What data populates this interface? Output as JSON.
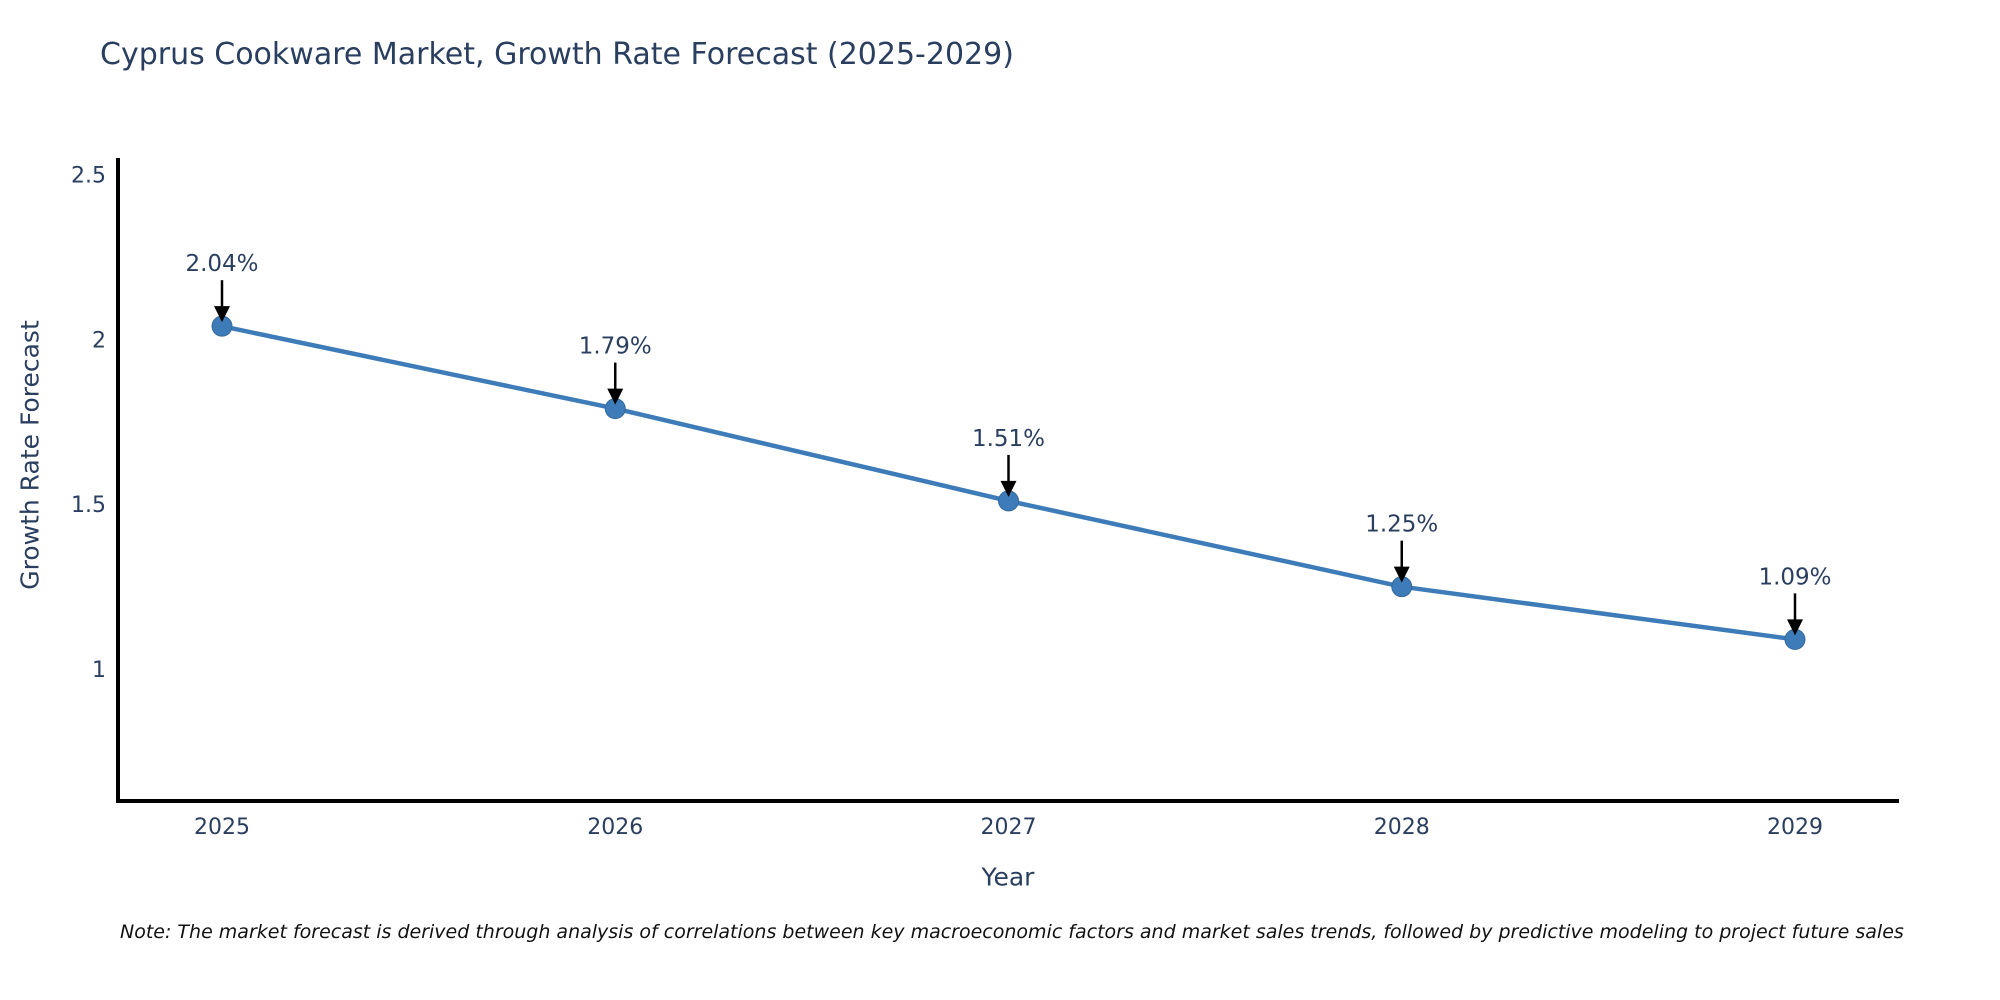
{
  "title": "Cyprus Cookware Market, Growth Rate Forecast (2025-2029)",
  "note": "Note: The market forecast is derived through analysis of correlations between key macroeconomic factors and market sales trends, followed by predictive modeling to project future sales",
  "chart_data": {
    "type": "line",
    "title": "Cyprus Cookware Market, Growth Rate Forecast (2025-2029)",
    "xlabel": "Year",
    "ylabel": "Growth Rate Forecast",
    "categories": [
      "2025",
      "2026",
      "2027",
      "2028",
      "2029"
    ],
    "values": [
      2.04,
      1.79,
      1.51,
      1.25,
      1.09
    ],
    "point_labels": [
      "2.04%",
      "1.79%",
      "1.51%",
      "1.25%",
      "1.09%"
    ],
    "y_ticks": [
      {
        "value": 2.5,
        "label": "2.5"
      },
      {
        "value": 2.0,
        "label": "2"
      },
      {
        "value": 1.5,
        "label": "1.5"
      },
      {
        "value": 1.0,
        "label": "1"
      }
    ],
    "ylim": [
      0.6,
      2.55
    ],
    "grid": false,
    "legend": "none",
    "marker": "circle",
    "annotation_style": "label-with-down-arrow",
    "colors": {
      "line": "#3d7cb8",
      "marker_fill": "#3d7cb8",
      "marker_edge": "#36699c",
      "axis_line": "#000000",
      "tick_text": "#2a3f5f",
      "annotation_text": "#2a3f5f",
      "annotation_arrow": "#000000",
      "title_text": "#2a3f5f",
      "note_text": "#111111",
      "background": "#ffffff"
    }
  }
}
